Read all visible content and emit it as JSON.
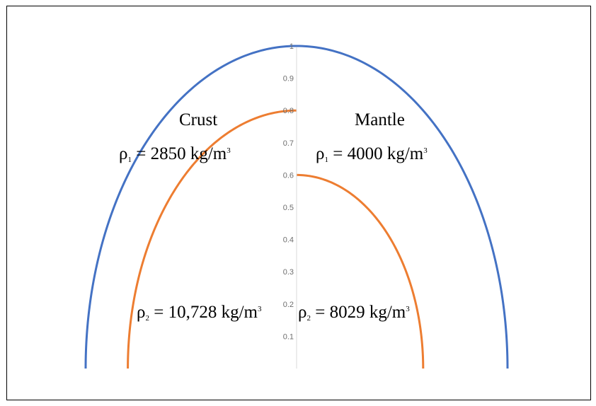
{
  "chart_data": {
    "type": "line",
    "y_ticks": [
      "0.1",
      "0.2",
      "0.3",
      "0.4",
      "0.5",
      "0.6",
      "0.7",
      "0.8",
      "0.9",
      "1"
    ],
    "ylim": [
      0,
      1
    ],
    "grid": false,
    "series": [
      {
        "color": "#4472c4",
        "left_radius": 1.0,
        "right_radius": 1.0
      },
      {
        "color": "#ed7d31",
        "left_radius": 0.8,
        "right_radius": 0.6
      }
    ],
    "annotations": {
      "crust_title": "Crust",
      "mantle_title": "Mantle",
      "crust_rho1": {
        "symbol": "ρ",
        "sub": "1",
        "text": " = 2850 kg/m",
        "sup": "3"
      },
      "mantle_rho1": {
        "symbol": "ρ",
        "sub": "1",
        "text": " = 4000 kg/m",
        "sup": "3"
      },
      "crust_rho2": {
        "symbol": "ρ",
        "sub": "2",
        "text": " = 10,728 kg/m",
        "sup": "3"
      },
      "mantle_rho2": {
        "symbol": "ρ",
        "sub": "2",
        "text": " = 8029 kg/m",
        "sup": "3"
      }
    }
  }
}
